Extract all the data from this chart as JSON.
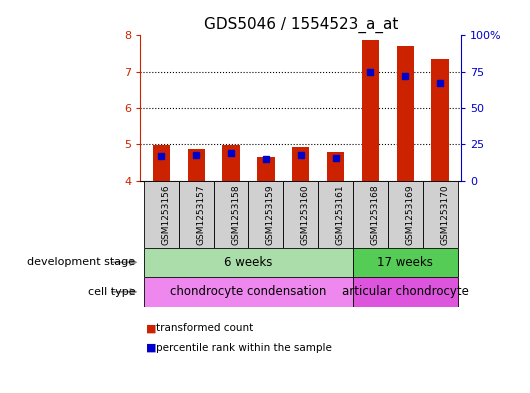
{
  "title": "GDS5046 / 1554523_a_at",
  "samples": [
    "GSM1253156",
    "GSM1253157",
    "GSM1253158",
    "GSM1253159",
    "GSM1253160",
    "GSM1253161",
    "GSM1253168",
    "GSM1253169",
    "GSM1253170"
  ],
  "bar_values": [
    4.98,
    4.88,
    4.99,
    4.65,
    4.93,
    4.78,
    7.88,
    7.72,
    7.35
  ],
  "dot_percentile": [
    17,
    18,
    19,
    15,
    18,
    16,
    75,
    72,
    67
  ],
  "ylim_left": [
    4,
    8
  ],
  "ylim_right": [
    0,
    100
  ],
  "yticks_left": [
    4,
    5,
    6,
    7,
    8
  ],
  "yticks_right": [
    0,
    25,
    50,
    75,
    100
  ],
  "bar_color": "#cc2200",
  "dot_color": "#0000cc",
  "bg_color": "#ffffff",
  "dev_stage_groups": [
    {
      "label": "6 weeks",
      "start": 0,
      "end": 6,
      "color": "#aaddaa"
    },
    {
      "label": "17 weeks",
      "start": 6,
      "end": 9,
      "color": "#55cc55"
    }
  ],
  "cell_type_groups": [
    {
      "label": "chondrocyte condensation",
      "start": 0,
      "end": 6,
      "color": "#ee88ee"
    },
    {
      "label": "articular chondrocyte",
      "start": 6,
      "end": 9,
      "color": "#dd55dd"
    }
  ],
  "legend_items": [
    {
      "label": "transformed count",
      "color": "#cc2200"
    },
    {
      "label": "percentile rank within the sample",
      "color": "#0000cc"
    }
  ],
  "row_label_dev": "development stage",
  "row_label_cell": "cell type",
  "title_fontsize": 11,
  "tick_fontsize": 8,
  "label_fontsize": 8
}
